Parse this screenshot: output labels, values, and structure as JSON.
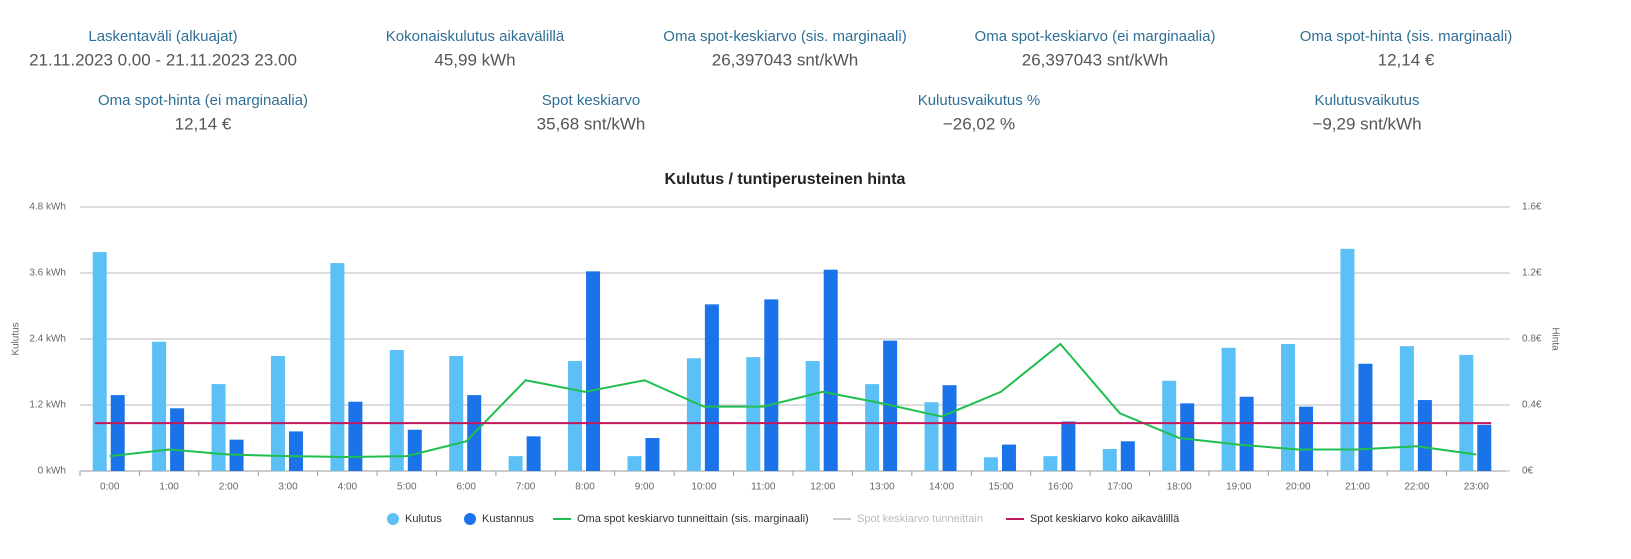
{
  "stats": [
    {
      "label": "Laskentaväli (alkuajat)",
      "value": "21.11.2023 0.00 - 21.11.2023 23.00"
    },
    {
      "label": "Kokonaiskulutus aikavälillä",
      "value": "45,99 kWh"
    },
    {
      "label": "Oma spot-keskiarvo (sis. marginaali)",
      "value": "26,397043 snt/kWh"
    },
    {
      "label": "Oma spot-keskiarvo (ei marginaalia)",
      "value": "26,397043 snt/kWh"
    },
    {
      "label": "Oma spot-hinta (sis. marginaali)",
      "value": "12,14 €"
    },
    {
      "label": "Oma spot-hinta (ei marginaalia)",
      "value": "12,14 €"
    },
    {
      "label": "Spot keskiarvo",
      "value": "35,68 snt/kWh"
    },
    {
      "label": "Kulutusvaikutus %",
      "value": "−26,02 %"
    },
    {
      "label": "Kulutusvaikutus",
      "value": "−9,29 snt/kWh"
    }
  ],
  "chart_data": {
    "type": "bar",
    "title": "Kulutus / tuntiperusteinen hinta",
    "ylabel": "Kulutus",
    "y2label": "Hinta",
    "categories": [
      "0:00",
      "1:00",
      "2:00",
      "3:00",
      "4:00",
      "5:00",
      "6:00",
      "7:00",
      "8:00",
      "9:00",
      "10:00",
      "11:00",
      "12:00",
      "13:00",
      "14:00",
      "15:00",
      "16:00",
      "17:00",
      "18:00",
      "19:00",
      "20:00",
      "21:00",
      "22:00",
      "23:00"
    ],
    "ylim": [
      0,
      4.8
    ],
    "yticks": [
      {
        "value": 0,
        "label": "0 kWh"
      },
      {
        "value": 1.2,
        "label": "1.2 kWh"
      },
      {
        "value": 2.4,
        "label": "2.4 kWh"
      },
      {
        "value": 3.6,
        "label": "3.6 kWh"
      },
      {
        "value": 4.8,
        "label": "4.8 kWh"
      }
    ],
    "y2lim": [
      0,
      1.6
    ],
    "y2ticks": [
      {
        "value": 0,
        "label": "0€"
      },
      {
        "value": 0.4,
        "label": "0.4€"
      },
      {
        "value": 0.8,
        "label": "0.8€"
      },
      {
        "value": 1.2,
        "label": "1.2€"
      },
      {
        "value": 1.6,
        "label": "1.6€"
      }
    ],
    "grid": true,
    "series": [
      {
        "name": "Kulutus",
        "kind": "bar",
        "color": "#5bc0f5",
        "values": [
          3.98,
          2.35,
          1.58,
          2.09,
          3.78,
          2.2,
          2.09,
          0.27,
          2.0,
          0.27,
          2.05,
          2.07,
          2.0,
          1.58,
          1.25,
          0.25,
          0.27,
          0.4,
          1.64,
          2.24,
          2.31,
          4.04,
          2.27,
          2.11
        ]
      },
      {
        "name": "Kustannus",
        "kind": "bar",
        "axis": "y2",
        "color": "#1a73e8",
        "values": [
          0.46,
          0.38,
          0.19,
          0.24,
          0.42,
          0.25,
          0.46,
          0.21,
          1.21,
          0.2,
          1.01,
          1.04,
          1.22,
          0.79,
          0.52,
          0.16,
          0.3,
          0.18,
          0.41,
          0.45,
          0.39,
          0.65,
          0.43,
          0.28
        ]
      },
      {
        "name": "Oma spot keskiarvo tunneittain (sis. marginaali)",
        "kind": "line",
        "axis": "y2",
        "color": "#1fbf4f",
        "values": [
          0.09,
          0.13,
          0.1,
          0.09,
          0.085,
          0.09,
          0.18,
          0.55,
          0.48,
          0.55,
          0.39,
          0.39,
          0.48,
          0.41,
          0.33,
          0.48,
          0.77,
          0.35,
          0.2,
          0.16,
          0.13,
          0.13,
          0.15,
          0.1
        ]
      },
      {
        "name": "Spot keskiarvo tunneittain",
        "kind": "line",
        "axis": "y2",
        "color": "#999999",
        "hidden": true
      },
      {
        "name": "Spot keskiarvo koko aikavälillä",
        "kind": "hline",
        "axis": "y2",
        "color": "#c2185b",
        "value": 0.29
      }
    ]
  }
}
